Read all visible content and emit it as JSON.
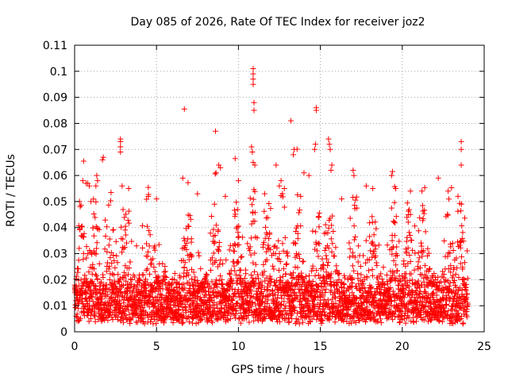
{
  "chart_data": {
    "type": "scatter",
    "title": "Day 085 of 2026, Rate Of TEC Index for receiver joz2",
    "xlabel": "GPS time / hours",
    "ylabel": "ROTI / TECUs",
    "xlim": [
      0,
      25
    ],
    "ylim": [
      0,
      0.11
    ],
    "xticks": [
      0,
      5,
      10,
      15,
      20,
      25
    ],
    "yticks": [
      0,
      0.01,
      0.02,
      0.03,
      0.04,
      0.05,
      0.06,
      0.07,
      0.08,
      0.09,
      0.1,
      0.11
    ],
    "grid": true,
    "marker": "+",
    "color": "#ff0000",
    "data_x_range": [
      0,
      24
    ],
    "baseline_band": [
      0.005,
      0.02
    ],
    "burst_hours": [
      0.5,
      1.2,
      2.2,
      3.1,
      4.5,
      6.9,
      8.6,
      9.9,
      10.9,
      11.8,
      12.7,
      13.6,
      14.8,
      15.6,
      17.1,
      18.2,
      19.5,
      20.4,
      21.3,
      22.9,
      23.6
    ],
    "series": [
      {
        "name": "joz2",
        "points": [
          [
            10.9,
            0.101
          ],
          [
            10.9,
            0.099
          ],
          [
            10.9,
            0.097
          ],
          [
            10.9,
            0.095
          ],
          [
            10.95,
            0.088
          ],
          [
            10.95,
            0.085
          ],
          [
            6.7,
            0.0855
          ],
          [
            14.75,
            0.086
          ],
          [
            14.75,
            0.085
          ],
          [
            13.2,
            0.081
          ],
          [
            8.6,
            0.077
          ],
          [
            2.8,
            0.074
          ],
          [
            2.8,
            0.073
          ],
          [
            2.8,
            0.071
          ],
          [
            2.8,
            0.069
          ],
          [
            15.5,
            0.074
          ],
          [
            15.55,
            0.072
          ],
          [
            15.6,
            0.07
          ],
          [
            23.6,
            0.073
          ],
          [
            23.6,
            0.07
          ],
          [
            14.7,
            0.072
          ],
          [
            14.65,
            0.07
          ],
          [
            13.4,
            0.07
          ],
          [
            13.35,
            0.068
          ],
          [
            10.8,
            0.071
          ],
          [
            10.85,
            0.069
          ],
          [
            10.9,
            0.065
          ],
          [
            11.0,
            0.064
          ],
          [
            9.8,
            0.0665
          ],
          [
            23.6,
            0.064
          ],
          [
            0.55,
            0.0655
          ],
          [
            1.75,
            0.067
          ],
          [
            1.7,
            0.066
          ],
          [
            12.3,
            0.064
          ],
          [
            8.8,
            0.064
          ],
          [
            8.9,
            0.063
          ],
          [
            15.7,
            0.064
          ],
          [
            15.65,
            0.062
          ],
          [
            17.0,
            0.062
          ],
          [
            17.05,
            0.06
          ],
          [
            14.3,
            0.06
          ],
          [
            14.0,
            0.061
          ],
          [
            19.4,
            0.0615
          ],
          [
            19.35,
            0.06
          ],
          [
            22.2,
            0.059
          ],
          [
            1.35,
            0.06
          ],
          [
            1.4,
            0.058
          ],
          [
            1.3,
            0.056
          ],
          [
            6.6,
            0.059
          ],
          [
            0.5,
            0.058
          ],
          [
            0.7,
            0.057
          ],
          [
            0.8,
            0.057
          ],
          [
            0.9,
            0.056
          ],
          [
            10.0,
            0.058
          ],
          [
            12.6,
            0.058
          ],
          [
            12.5,
            0.056
          ],
          [
            12.8,
            0.055
          ],
          [
            2.9,
            0.056
          ],
          [
            3.3,
            0.055
          ],
          [
            17.8,
            0.056
          ],
          [
            18.2,
            0.055
          ],
          [
            19.6,
            0.055
          ],
          [
            20.5,
            0.054
          ],
          [
            21.2,
            0.054
          ],
          [
            22.8,
            0.054
          ],
          [
            4.5,
            0.052
          ],
          [
            5.0,
            0.051
          ],
          [
            7.5,
            0.053
          ],
          [
            9.2,
            0.052
          ],
          [
            11.6,
            0.053
          ],
          [
            13.8,
            0.052
          ],
          [
            16.3,
            0.051
          ],
          [
            23.4,
            0.052
          ],
          [
            0.3,
            0.05
          ],
          [
            1.0,
            0.05
          ]
        ]
      }
    ]
  }
}
